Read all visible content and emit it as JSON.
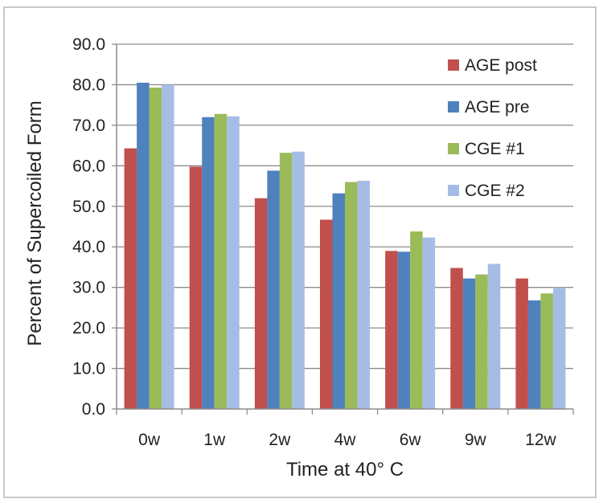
{
  "chart_data": {
    "type": "bar",
    "title": "",
    "xlabel": "Time at 40° C",
    "ylabel": "Percent of Supercoiled Form",
    "categories": [
      "0w",
      "1w",
      "2w",
      "4w",
      "6w",
      "9w",
      "12w"
    ],
    "ylim": [
      0,
      90
    ],
    "yticks": [
      0,
      10,
      20,
      30,
      40,
      50,
      60,
      70,
      80,
      90
    ],
    "ytick_labels": [
      "0.0",
      "10.0",
      "20.0",
      "30.0",
      "40.0",
      "50.0",
      "60.0",
      "70.0",
      "80.0",
      "90.0"
    ],
    "grid": true,
    "legend_position": "right",
    "series": [
      {
        "name": "AGE post",
        "color": "#c0504d",
        "values": [
          64.3,
          59.8,
          52.0,
          46.7,
          39.0,
          34.8,
          32.2
        ]
      },
      {
        "name": "AGE pre",
        "color": "#4f81bd",
        "values": [
          80.5,
          72.0,
          58.8,
          53.2,
          38.8,
          32.2,
          26.8
        ]
      },
      {
        "name": "CGE #1",
        "color": "#9bbb59",
        "values": [
          79.3,
          72.8,
          63.2,
          56.0,
          43.8,
          33.2,
          28.5
        ]
      },
      {
        "name": "CGE #2",
        "color": "#a5bde5",
        "values": [
          80.0,
          72.2,
          63.5,
          56.3,
          42.3,
          35.8,
          30.0
        ]
      }
    ]
  }
}
